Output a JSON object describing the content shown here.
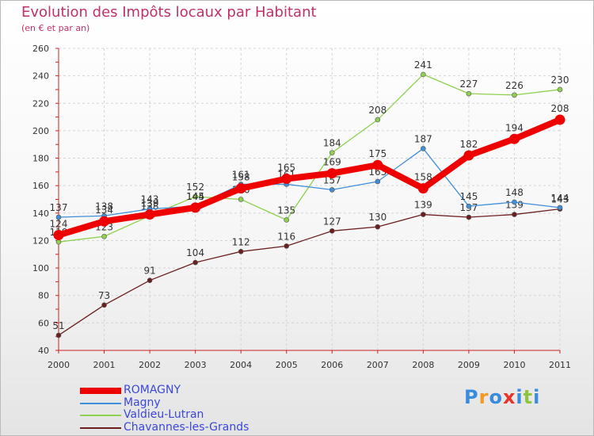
{
  "chart_data": {
    "type": "line",
    "title": "Evolution des Impôts locaux par Habitant",
    "subtitle": "(en € et par an)",
    "xlabel": "",
    "ylabel": "",
    "ylim": [
      40,
      260
    ],
    "y_ticks": [
      40,
      60,
      80,
      100,
      120,
      140,
      160,
      180,
      200,
      220,
      240,
      260
    ],
    "categories": [
      "2000",
      "2001",
      "2002",
      "2003",
      "2004",
      "2005",
      "2006",
      "2007",
      "2008",
      "2009",
      "2010",
      "2011"
    ],
    "grid": true,
    "legend_position": "bottom-left",
    "series": [
      {
        "name": "Chavannes-les-Grands",
        "color": "#6b1f1f",
        "values": [
          51,
          73,
          91,
          104,
          112,
          116,
          127,
          130,
          139,
          137,
          139,
          143
        ]
      },
      {
        "name": "Valdieu-Lutran",
        "color": "#8fd14f",
        "values": [
          119,
          123,
          138,
          152,
          150,
          135,
          184,
          208,
          241,
          227,
          226,
          230
        ]
      },
      {
        "name": "Magny",
        "color": "#3f8ed8",
        "values": [
          137,
          138,
          143,
          145,
          161,
          161,
          157,
          163,
          187,
          145,
          148,
          144
        ]
      },
      {
        "name": "ROMAGNY",
        "color": "#ee0000",
        "values": [
          124,
          134,
          139,
          144,
          158,
          165,
          169,
          175,
          158,
          182,
          194,
          208
        ]
      }
    ]
  },
  "legend": {
    "items": [
      {
        "label": "ROMAGNY",
        "color": "#ee0000"
      },
      {
        "label": "Magny",
        "color": "#3f8ed8"
      },
      {
        "label": "Valdieu-Lutran",
        "color": "#8fd14f"
      },
      {
        "label": "Chavannes-les-Grands",
        "color": "#6b1f1f"
      }
    ]
  },
  "logo": {
    "letters": [
      "P",
      "r",
      "o",
      "x",
      "i",
      "t",
      "i"
    ],
    "colors": [
      "#3a8be0",
      "#f29a1f",
      "#3a8be0",
      "#e8332a",
      "#3a8be0",
      "#8cc63f",
      "#3a8be0"
    ]
  }
}
